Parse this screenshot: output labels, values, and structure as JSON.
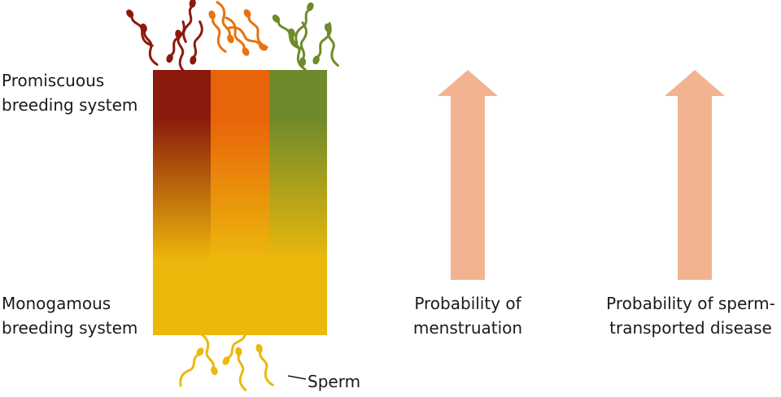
{
  "labels": {
    "promiscuous": "Promiscuous\nbreeding system",
    "monogamous": "Monogamous\nbreeding system",
    "sperm": "Sperm",
    "menstruation": "Probability of\nmenstruation",
    "disease": "Probability of sperm-\ntransported disease"
  },
  "colors": {
    "stripe_dark_red": "#8b1a0c",
    "stripe_orange": "#e8640a",
    "stripe_green": "#6f8a2a",
    "bottom_yellow": "#ecb80c",
    "arrow": "#f3b391"
  }
}
